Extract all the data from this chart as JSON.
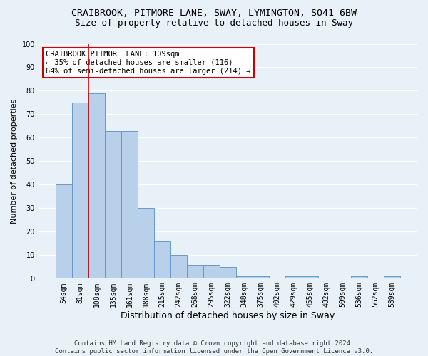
{
  "title": "CRAIBROOK, PITMORE LANE, SWAY, LYMINGTON, SO41 6BW",
  "subtitle": "Size of property relative to detached houses in Sway",
  "xlabel": "Distribution of detached houses by size in Sway",
  "ylabel": "Number of detached properties",
  "bar_labels": [
    "54sqm",
    "81sqm",
    "108sqm",
    "135sqm",
    "161sqm",
    "188sqm",
    "215sqm",
    "242sqm",
    "268sqm",
    "295sqm",
    "322sqm",
    "348sqm",
    "375sqm",
    "402sqm",
    "429sqm",
    "455sqm",
    "482sqm",
    "509sqm",
    "536sqm",
    "562sqm",
    "589sqm"
  ],
  "bar_values": [
    40,
    75,
    79,
    63,
    63,
    30,
    16,
    10,
    6,
    6,
    5,
    1,
    1,
    0,
    1,
    1,
    0,
    0,
    1,
    0,
    1
  ],
  "bar_color": "#b8d0ea",
  "bar_edgecolor": "#6699cc",
  "vline_color": "#cc0000",
  "annotation_text": "CRAIBROOK PITMORE LANE: 109sqm\n← 35% of detached houses are smaller (116)\n64% of semi-detached houses are larger (214) →",
  "annotation_box_color": "#ffffff",
  "annotation_border_color": "#cc0000",
  "ylim": [
    0,
    100
  ],
  "yticks": [
    0,
    10,
    20,
    30,
    40,
    50,
    60,
    70,
    80,
    90,
    100
  ],
  "footnote": "Contains HM Land Registry data © Crown copyright and database right 2024.\nContains public sector information licensed under the Open Government Licence v3.0.",
  "bg_color": "#e8f0f8",
  "plot_bg_color": "#e8f0f8",
  "grid_color": "#ffffff",
  "title_fontsize": 9.5,
  "subtitle_fontsize": 9,
  "tick_fontsize": 7,
  "ylabel_fontsize": 8,
  "xlabel_fontsize": 9,
  "footnote_fontsize": 6.5
}
